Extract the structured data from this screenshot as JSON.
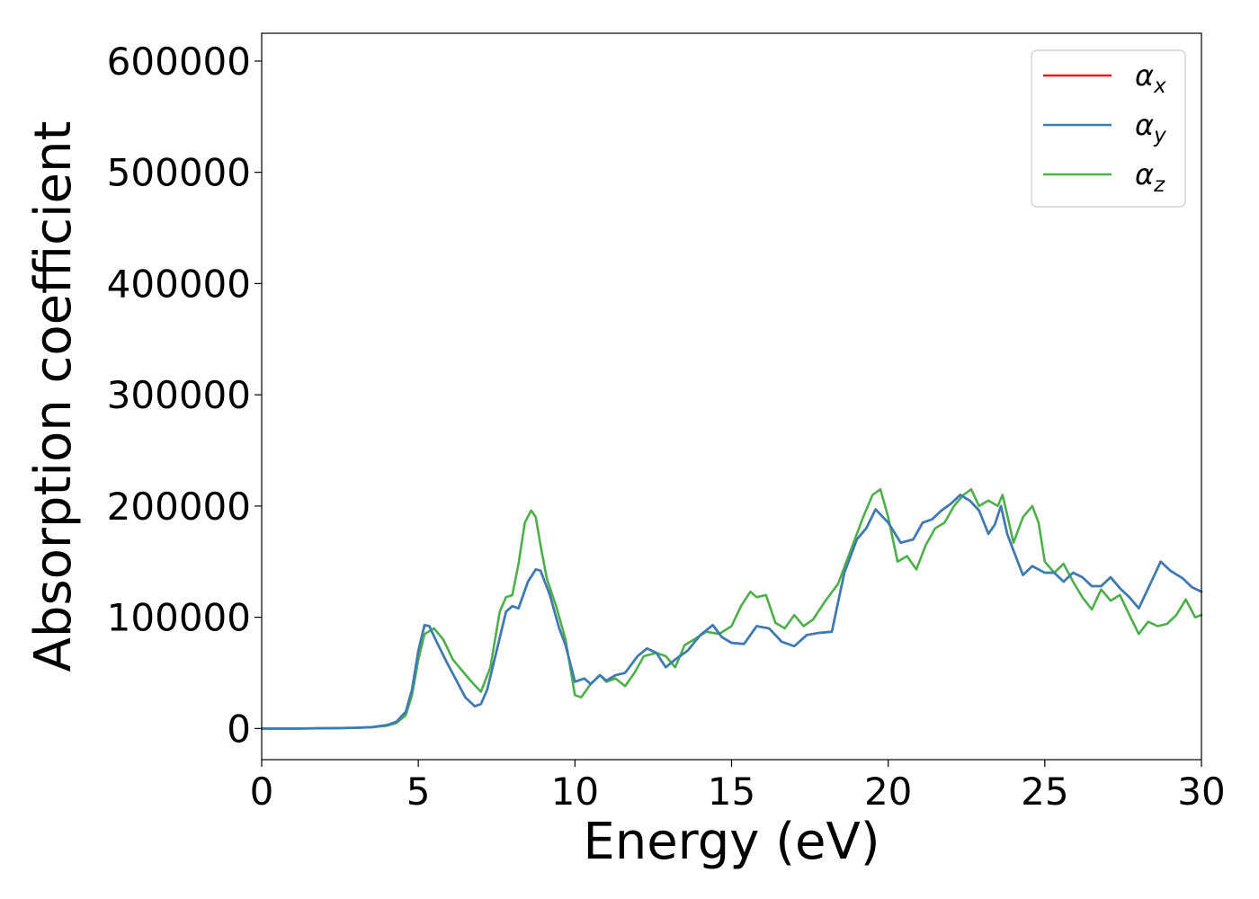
{
  "chart_data": {
    "type": "line",
    "title": "",
    "xlabel": "Energy (eV)",
    "ylabel": "Absorption coefficient",
    "xlim": [
      0,
      30
    ],
    "ylim": [
      -28000,
      625000
    ],
    "xticks": [
      0,
      5,
      10,
      15,
      20,
      25,
      30
    ],
    "xtick_labels": [
      "0",
      "5",
      "10",
      "15",
      "20",
      "25",
      "30"
    ],
    "yticks": [
      0,
      100000,
      200000,
      300000,
      400000,
      500000,
      600000
    ],
    "ytick_labels": [
      "0",
      "100000",
      "200000",
      "300000",
      "400000",
      "500000",
      "600000"
    ],
    "grid": false,
    "legend_position": "top-right",
    "series": [
      {
        "name": "α",
        "sub": "x",
        "color": "#e41a1c",
        "x": [
          0,
          1,
          2,
          3,
          3.5,
          4,
          4.3,
          4.6,
          4.8,
          5.0,
          5.2,
          5.35,
          5.6,
          5.9,
          6.2,
          6.5,
          6.8,
          7.0,
          7.2,
          7.5,
          7.8,
          8.0,
          8.2,
          8.5,
          8.75,
          8.9,
          9.2,
          9.5,
          9.7,
          10.0,
          10.3,
          10.5,
          10.8,
          11.0,
          11.3,
          11.6,
          12.0,
          12.3,
          12.6,
          12.9,
          13.2,
          13.6,
          14.0,
          14.4,
          14.7,
          15.0,
          15.4,
          15.8,
          16.2,
          16.6,
          17.0,
          17.4,
          17.8,
          18.2,
          18.6,
          19.0,
          19.3,
          19.6,
          20.0,
          20.4,
          20.8,
          21.1,
          21.4,
          21.7,
          22.0,
          22.3,
          22.6,
          22.9,
          23.2,
          23.4,
          23.6,
          23.8,
          24.0,
          24.3,
          24.6,
          25.0,
          25.3,
          25.6,
          25.9,
          26.2,
          26.5,
          26.8,
          27.1,
          27.4,
          27.7,
          28.0,
          28.4,
          28.7,
          29.0,
          29.4,
          29.7,
          30.0
        ],
        "values": [
          0,
          0,
          200,
          600,
          1200,
          3000,
          6000,
          15000,
          35000,
          70000,
          93000,
          92000,
          77000,
          60000,
          44000,
          28000,
          20000,
          22000,
          35000,
          70000,
          105000,
          110000,
          108000,
          132000,
          143000,
          142000,
          120000,
          90000,
          75000,
          42000,
          45000,
          40000,
          48000,
          43000,
          48000,
          50000,
          65000,
          72000,
          68000,
          55000,
          62000,
          70000,
          84000,
          93000,
          82000,
          77000,
          76000,
          92000,
          90000,
          78000,
          74000,
          84000,
          86000,
          87000,
          140000,
          170000,
          180000,
          197000,
          185000,
          167000,
          170000,
          185000,
          188000,
          196000,
          202000,
          210000,
          205000,
          196000,
          175000,
          183000,
          200000,
          175000,
          160000,
          138000,
          146000,
          140000,
          140000,
          132000,
          140000,
          136000,
          128000,
          128000,
          136000,
          126000,
          118000,
          108000,
          132000,
          150000,
          142000,
          135000,
          127000,
          123000
        ]
      },
      {
        "name": "α",
        "sub": "y",
        "color": "#377eb8",
        "x": [
          0,
          1,
          2,
          3,
          3.5,
          4,
          4.3,
          4.6,
          4.8,
          5.0,
          5.2,
          5.35,
          5.6,
          5.9,
          6.2,
          6.5,
          6.8,
          7.0,
          7.2,
          7.5,
          7.8,
          8.0,
          8.2,
          8.5,
          8.75,
          8.9,
          9.2,
          9.5,
          9.7,
          10.0,
          10.3,
          10.5,
          10.8,
          11.0,
          11.3,
          11.6,
          12.0,
          12.3,
          12.6,
          12.9,
          13.2,
          13.6,
          14.0,
          14.4,
          14.7,
          15.0,
          15.4,
          15.8,
          16.2,
          16.6,
          17.0,
          17.4,
          17.8,
          18.2,
          18.6,
          19.0,
          19.3,
          19.6,
          20.0,
          20.4,
          20.8,
          21.1,
          21.4,
          21.7,
          22.0,
          22.3,
          22.6,
          22.9,
          23.2,
          23.4,
          23.6,
          23.8,
          24.0,
          24.3,
          24.6,
          25.0,
          25.3,
          25.6,
          25.9,
          26.2,
          26.5,
          26.8,
          27.1,
          27.4,
          27.7,
          28.0,
          28.4,
          28.7,
          29.0,
          29.4,
          29.7,
          30.0
        ],
        "values": [
          0,
          0,
          200,
          600,
          1200,
          3000,
          6000,
          15000,
          35000,
          70000,
          93000,
          92000,
          77000,
          60000,
          44000,
          28000,
          20000,
          22000,
          35000,
          70000,
          105000,
          110000,
          108000,
          132000,
          143000,
          142000,
          120000,
          90000,
          75000,
          42000,
          45000,
          40000,
          48000,
          43000,
          48000,
          50000,
          65000,
          72000,
          68000,
          55000,
          62000,
          70000,
          84000,
          93000,
          82000,
          77000,
          76000,
          92000,
          90000,
          78000,
          74000,
          84000,
          86000,
          87000,
          140000,
          170000,
          180000,
          197000,
          185000,
          167000,
          170000,
          185000,
          188000,
          196000,
          202000,
          210000,
          205000,
          196000,
          175000,
          183000,
          200000,
          175000,
          160000,
          138000,
          146000,
          140000,
          140000,
          132000,
          140000,
          136000,
          128000,
          128000,
          136000,
          126000,
          118000,
          108000,
          132000,
          150000,
          142000,
          135000,
          127000,
          123000
        ]
      },
      {
        "name": "α",
        "sub": "z",
        "color": "#4daf4a",
        "x": [
          0,
          1,
          2,
          3,
          3.5,
          4,
          4.3,
          4.6,
          4.8,
          5.0,
          5.2,
          5.5,
          5.8,
          6.1,
          6.4,
          6.7,
          7.0,
          7.3,
          7.6,
          7.8,
          8.0,
          8.2,
          8.4,
          8.6,
          8.75,
          8.9,
          9.1,
          9.4,
          9.7,
          10.0,
          10.2,
          10.5,
          10.8,
          11.0,
          11.3,
          11.6,
          11.9,
          12.2,
          12.6,
          12.9,
          13.2,
          13.5,
          13.8,
          14.2,
          14.6,
          15.0,
          15.3,
          15.6,
          15.8,
          16.1,
          16.4,
          16.7,
          17.0,
          17.3,
          17.6,
          18.0,
          18.4,
          18.8,
          19.2,
          19.5,
          19.75,
          20.0,
          20.3,
          20.6,
          20.9,
          21.2,
          21.5,
          21.8,
          22.1,
          22.4,
          22.65,
          22.9,
          23.2,
          23.5,
          23.65,
          23.8,
          24.0,
          24.3,
          24.6,
          24.8,
          25.0,
          25.3,
          25.6,
          25.9,
          26.2,
          26.5,
          26.8,
          27.1,
          27.4,
          27.7,
          28.0,
          28.3,
          28.6,
          28.9,
          29.2,
          29.5,
          29.8,
          30.0
        ],
        "values": [
          0,
          0,
          200,
          600,
          1200,
          2500,
          5000,
          12000,
          30000,
          62000,
          85000,
          90000,
          80000,
          62000,
          52000,
          42000,
          33000,
          55000,
          105000,
          118000,
          120000,
          148000,
          185000,
          196000,
          190000,
          165000,
          135000,
          110000,
          80000,
          30000,
          28000,
          40000,
          48000,
          42000,
          45000,
          38000,
          50000,
          65000,
          68000,
          65000,
          55000,
          75000,
          80000,
          87000,
          85000,
          92000,
          110000,
          123000,
          118000,
          120000,
          95000,
          90000,
          102000,
          92000,
          98000,
          115000,
          130000,
          160000,
          190000,
          210000,
          215000,
          190000,
          150000,
          155000,
          143000,
          165000,
          180000,
          185000,
          200000,
          210000,
          215000,
          200000,
          205000,
          200000,
          210000,
          192000,
          167000,
          190000,
          200000,
          185000,
          150000,
          140000,
          148000,
          132000,
          118000,
          107000,
          125000,
          115000,
          120000,
          102000,
          85000,
          96000,
          92000,
          94000,
          102000,
          116000,
          100000,
          102000
        ]
      }
    ]
  }
}
